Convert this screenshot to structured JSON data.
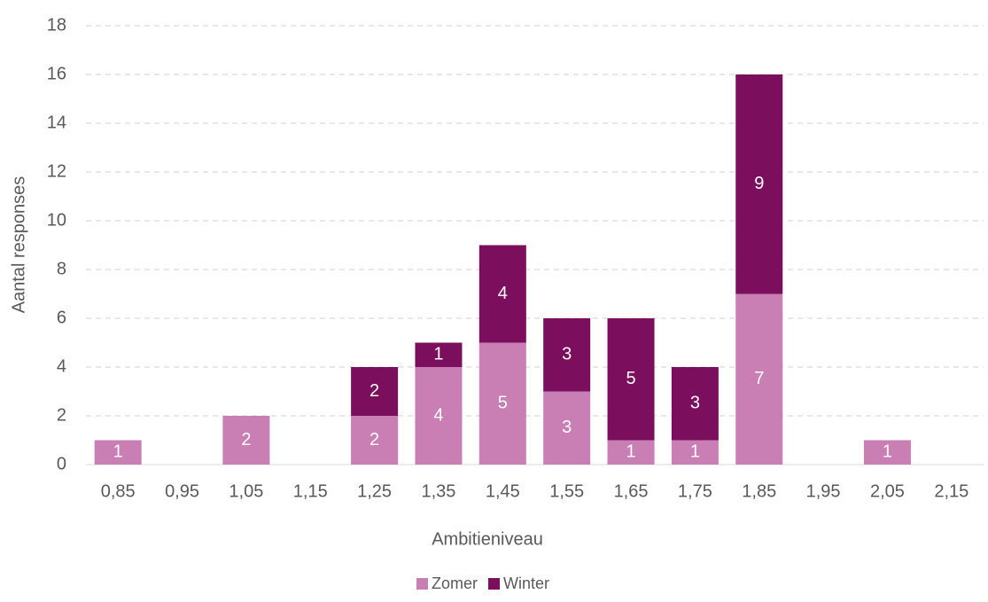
{
  "chart_data": {
    "type": "stacked_bar",
    "categories": [
      "0,85",
      "0,95",
      "1,05",
      "1,15",
      "1,25",
      "1,35",
      "1,45",
      "1,55",
      "1,65",
      "1,75",
      "1,85",
      "1,95",
      "2,05",
      "2,15"
    ],
    "series": [
      {
        "name": "Zomer",
        "color": "#c97fb4",
        "values": [
          1,
          0,
          2,
          0,
          2,
          4,
          5,
          3,
          1,
          1,
          7,
          0,
          1,
          0
        ]
      },
      {
        "name": "Winter",
        "color": "#7b0f5e",
        "values": [
          0,
          0,
          0,
          0,
          2,
          1,
          4,
          3,
          5,
          3,
          9,
          0,
          0,
          0
        ]
      }
    ],
    "xlabel": "Ambitieniveau",
    "ylabel": "Aantal responses",
    "ylim": [
      0,
      18
    ],
    "yticks": [
      0,
      2,
      4,
      6,
      8,
      10,
      12,
      14,
      16,
      18
    ],
    "grid": true,
    "legend": "bottom"
  }
}
